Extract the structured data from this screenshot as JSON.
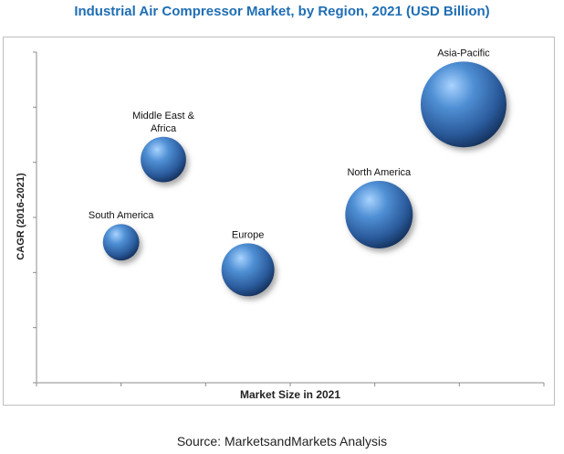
{
  "chart_data": {
    "type": "scatter",
    "subtype": "bubble",
    "title": "Industrial Air Compressor Market, by Region, 2021 (USD Billion)",
    "xlabel": "Market Size in 2021",
    "ylabel": "CAGR (2016-2021)",
    "grid": false,
    "legend": "none",
    "bubble_color": "#2f5f9e",
    "points": [
      {
        "label": "Asia-Pacific",
        "x": 5.05,
        "y": 5.05,
        "size": 1.0
      },
      {
        "label": "Middle East & Africa",
        "x": 1.5,
        "y": 4.05,
        "size": 0.28
      },
      {
        "label": "North America",
        "x": 4.05,
        "y": 3.05,
        "size": 0.62
      },
      {
        "label": "South America",
        "x": 1.0,
        "y": 2.55,
        "size": 0.18
      },
      {
        "label": "Europe",
        "x": 2.5,
        "y": 2.05,
        "size": 0.38
      }
    ],
    "xlim": [
      0,
      6
    ],
    "ylim": [
      0,
      6
    ]
  },
  "source": "Source: MarketsandMarkets Analysis"
}
